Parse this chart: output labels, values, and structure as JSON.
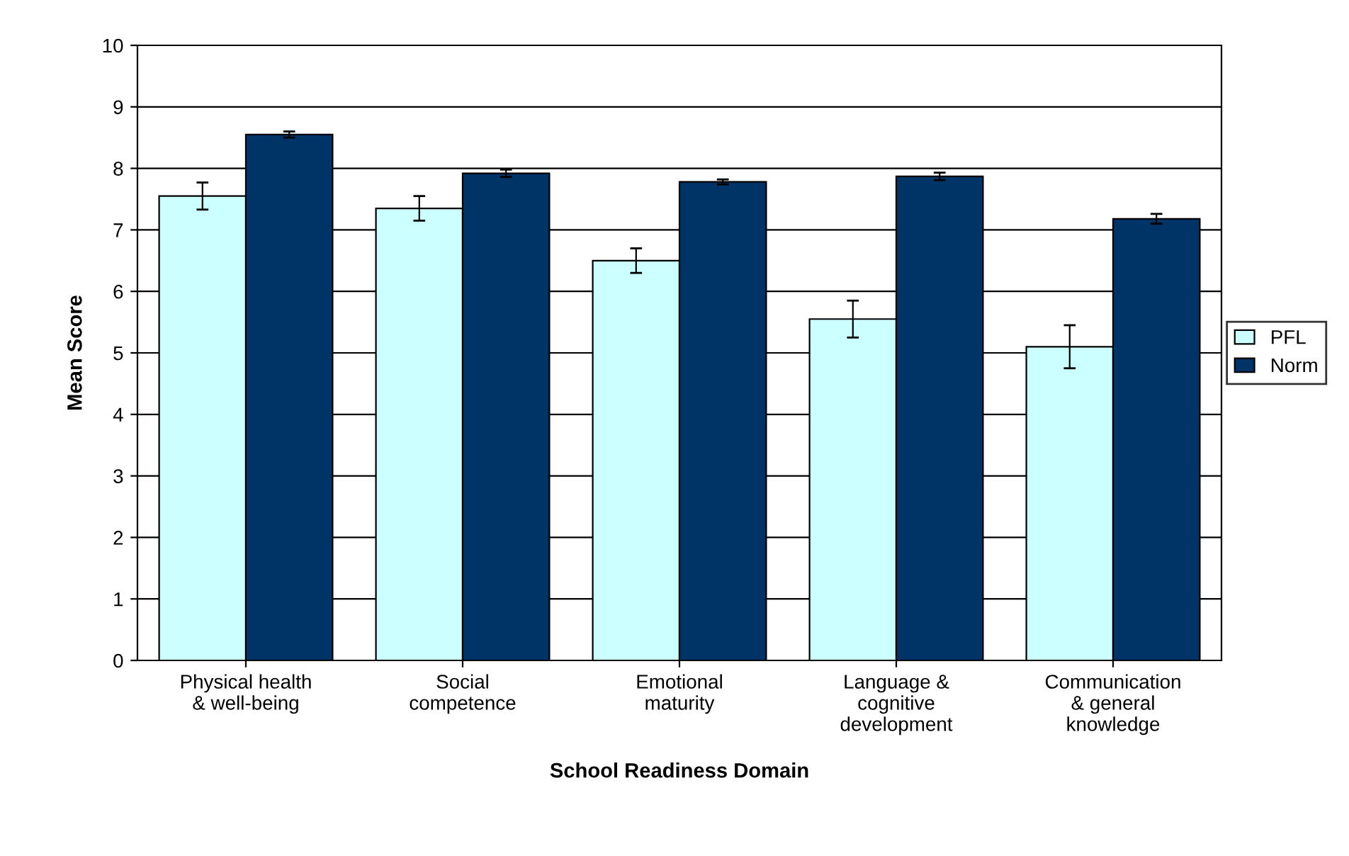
{
  "chart_data": {
    "type": "bar",
    "xlabel": "School Readiness Domain",
    "ylabel": "Mean Score",
    "categories": [
      "Physical health\n& well-being",
      "Social\ncompetence",
      "Emotional\nmaturity",
      "Language &\ncognitive\ndevelopment",
      "Communication\n& general\nknowledge"
    ],
    "series": [
      {
        "name": "PFL",
        "color": "#ccffff",
        "values": [
          7.55,
          7.35,
          6.5,
          5.55,
          5.1
        ],
        "errors": [
          0.22,
          0.2,
          0.2,
          0.3,
          0.35
        ]
      },
      {
        "name": "Norm",
        "color": "#003366",
        "values": [
          8.55,
          7.92,
          7.78,
          7.87,
          7.18
        ],
        "errors": [
          0.05,
          0.06,
          0.04,
          0.06,
          0.08
        ]
      }
    ],
    "ylim": [
      0,
      10
    ],
    "yticks": [
      0,
      1,
      2,
      3,
      4,
      5,
      6,
      7,
      8,
      9,
      10
    ],
    "grid": "y",
    "legend": "right"
  }
}
